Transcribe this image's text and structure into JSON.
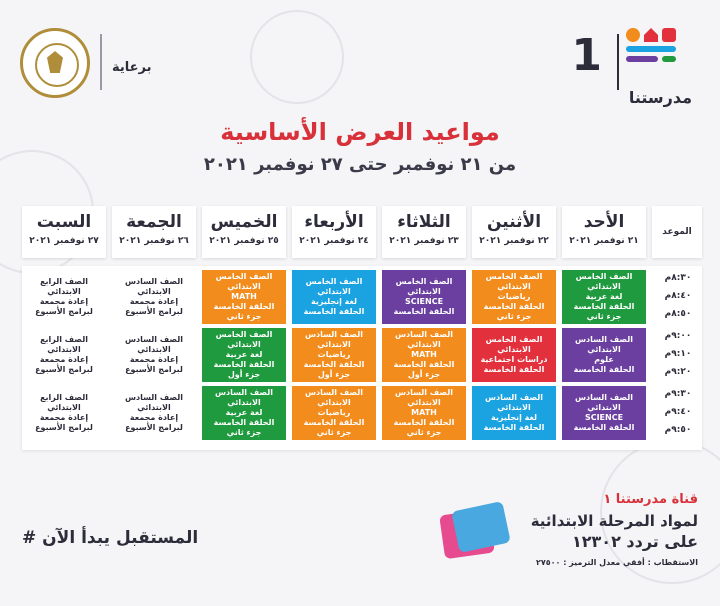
{
  "header": {
    "brand_number": "1",
    "brand_name": "مدرستنا",
    "sponsor_label": "برعاية",
    "ministry_seal": "MINISTRY OF EDUCATION AND TECHNICAL EDUCATION"
  },
  "title": "مواعيد العرض الأساسية",
  "subtitle": "من ٢١ نوفمبر حتى ٢٧ نوفمبر ٢٠٢١",
  "time_header": "الموعد",
  "days": [
    {
      "name": "الأحد",
      "date": "٢١ نوفمبر ٢٠٢١"
    },
    {
      "name": "الأثنين",
      "date": "٢٢ نوفمبر ٢٠٢١"
    },
    {
      "name": "الثلاثاء",
      "date": "٢٣ نوفمبر ٢٠٢١"
    },
    {
      "name": "الأربعاء",
      "date": "٢٤ نوفمبر ٢٠٢١"
    },
    {
      "name": "الخميس",
      "date": "٢٥ نوفمبر ٢٠٢١"
    },
    {
      "name": "الجمعة",
      "date": "٢٦ نوفمبر ٢٠٢١"
    },
    {
      "name": "السبت",
      "date": "٢٧ نوفمبر ٢٠٢١"
    }
  ],
  "times": [
    "٨:٣٠م",
    "٨:٤٠م",
    "٨:٥٠م",
    "٩:٠٠م",
    "٩:١٠م",
    "٩:٢٠م",
    "٩:٣٠م",
    "٩:٤٠م",
    "٩:٥٠م"
  ],
  "colors": {
    "green": "#1f9a3e",
    "orange": "#f28c1c",
    "purple": "#6a3fa0",
    "blue": "#1aa3e0",
    "red": "#e2313c",
    "title_red": "#d8313a"
  },
  "rows": [
    [
      {
        "color": "green",
        "lines": [
          "الصف الخامس الابتدائي",
          "لغة عربية",
          "الحلقة الخامسة",
          "جزء ثاني"
        ]
      },
      {
        "color": "orange",
        "lines": [
          "الصف الخامس الابتدائي",
          "رياضيات",
          "الحلقة الخامسة",
          "جزء ثاني"
        ]
      },
      {
        "color": "purple",
        "lines": [
          "الصف الخامس الابتدائي",
          "SCIENCE",
          "الحلقة الخامسة"
        ]
      },
      {
        "color": "blue",
        "lines": [
          "الصف الخامس الابتدائي",
          "لغة إنجليزية",
          "الحلقة الخامسة"
        ]
      },
      {
        "color": "orange",
        "lines": [
          "الصف الخامس الابتدائي",
          "MATH",
          "الحلقة الخامسة",
          "جزء ثاني"
        ]
      },
      {
        "color": "white",
        "lines": [
          "الصف السادس الابتدائي",
          "إعادة مجمعة",
          "لبرامج الأسبوع"
        ]
      },
      {
        "color": "white",
        "lines": [
          "الصف الرابع الابتدائي",
          "إعادة مجمعة",
          "لبرامج الأسبوع"
        ]
      }
    ],
    [
      {
        "color": "purple",
        "lines": [
          "الصف السادس الابتدائي",
          "علوم",
          "الحلقة الخامسة"
        ]
      },
      {
        "color": "red",
        "lines": [
          "الصف الخامس الابتدائي",
          "دراسات اجتماعية",
          "الحلقة الخامسة"
        ]
      },
      {
        "color": "orange",
        "lines": [
          "الصف السادس الابتدائي",
          "MATH",
          "الحلقة الخامسة",
          "جزء أول"
        ]
      },
      {
        "color": "orange",
        "lines": [
          "الصف السادس الابتدائي",
          "رياضيات",
          "الحلقة الخامسة",
          "جزء أول"
        ]
      },
      {
        "color": "green",
        "lines": [
          "الصف الخامس الابتدائي",
          "لغة عربية",
          "الحلقة الخامسة",
          "جزء أول"
        ]
      },
      {
        "color": "white",
        "lines": [
          "الصف السادس الابتدائي",
          "إعادة مجمعة",
          "لبرامج الأسبوع"
        ]
      },
      {
        "color": "white",
        "lines": [
          "الصف الرابع الابتدائي",
          "إعادة مجمعة",
          "لبرامج الأسبوع"
        ]
      }
    ],
    [
      {
        "color": "purple",
        "lines": [
          "الصف السادس الابتدائي",
          "SCIENCE",
          "الحلقة الخامسة"
        ]
      },
      {
        "color": "blue",
        "lines": [
          "الصف السادس الابتدائي",
          "لغة إنجليزية",
          "الحلقة الخامسة"
        ]
      },
      {
        "color": "orange",
        "lines": [
          "الصف السادس الابتدائي",
          "MATH",
          "الحلقة الخامسة",
          "جزء ثاني"
        ]
      },
      {
        "color": "orange",
        "lines": [
          "الصف السادس الابتدائي",
          "رياضيات",
          "الحلقة الخامسة",
          "جزء ثاني"
        ]
      },
      {
        "color": "green",
        "lines": [
          "الصف السادس الابتدائي",
          "لغة عربية",
          "الحلقة الخامسة",
          "جزء ثاني"
        ]
      },
      {
        "color": "white",
        "lines": [
          "الصف السادس الابتدائي",
          "إعادة مجمعة",
          "لبرامج الأسبوع"
        ]
      },
      {
        "color": "white",
        "lines": [
          "الصف الرابع الابتدائي",
          "إعادة مجمعة",
          "لبرامج الأسبوع"
        ]
      }
    ]
  ],
  "footer": {
    "hashtag": "# المستقبل يبدأ الآن",
    "channel": "قناة مدرستنا ١",
    "for_subjects": "لمواد المرحلة الابتدائية",
    "frequency": "على تردد ١٢٣٠٢",
    "reception": "الاستقطاب : أفقي معدل الترميز : ٢٧٥٠٠"
  }
}
